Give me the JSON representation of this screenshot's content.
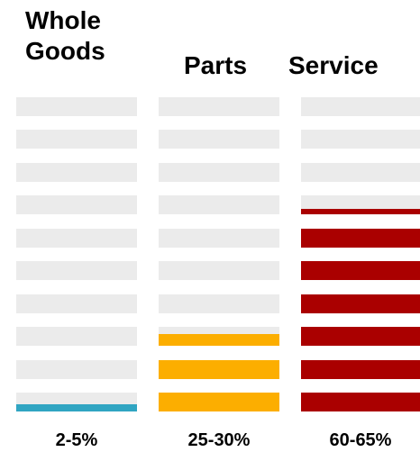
{
  "chart_data": {
    "type": "bar",
    "categories": [
      [
        "Whole",
        "Goods"
      ],
      [
        "Parts"
      ],
      [
        "Service"
      ]
    ],
    "value_labels": [
      "2-5%",
      "25-30%",
      "60-65%"
    ],
    "units_total": 10,
    "units_filled": [
      0.4,
      2.6,
      6.3
    ],
    "colors": {
      "empty": "#ebebeb",
      "series": [
        "#30a5c2",
        "#fcae00",
        "#aa0000"
      ]
    }
  }
}
